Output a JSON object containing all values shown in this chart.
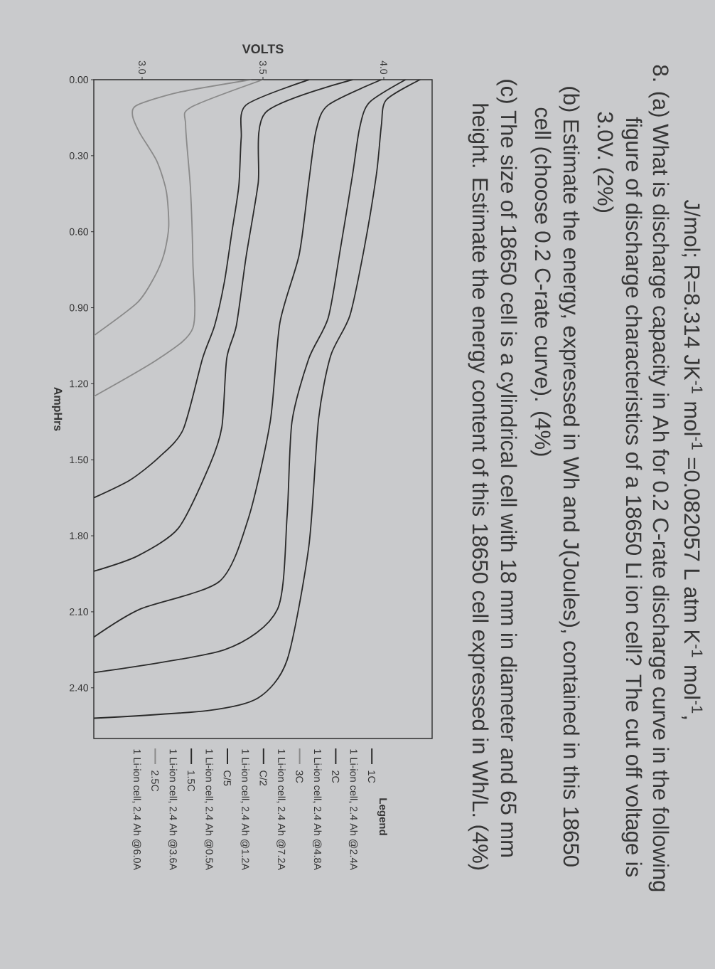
{
  "chart_data": {
    "type": "line",
    "xlabel": "VOLTS",
    "ylabel": "AmpHrs",
    "legend_title": "Legend",
    "legend": "bottom",
    "xlim": [
      2.8,
      4.2
    ],
    "ylim": [
      2.6,
      0
    ],
    "xticks": [
      {
        "value": 3,
        "label": "3.0"
      },
      3.5,
      {
        "value": 4,
        "label": "4.0"
      }
    ],
    "yticks": [
      {
        "value": 0,
        "label": "0.00"
      },
      {
        "value": 0.3,
        "label": "0.30"
      },
      {
        "value": 0.6,
        "label": "0.60"
      },
      {
        "value": 0.9,
        "label": "0.90"
      },
      {
        "value": 1.2,
        "label": "1.20"
      },
      {
        "value": 1.5,
        "label": "1.50"
      },
      {
        "value": 1.8,
        "label": "1.80"
      },
      {
        "value": 2.1,
        "label": "2.10"
      },
      {
        "value": 2.4,
        "label": "2.40"
      }
    ],
    "annotations": [
      "J/mol; R=8.314  JK$^{-1}$ mol$^{-1}$ =0.082057 L atm K$^{-1}$ mol$^{-1}$,",
      "8. (a) What is discharge capacity in Ah for 0.2 C-rate discharge curve in the following",
      "figure of discharge characteristics of a 18650 Li ion cell?  The cut off voltage is",
      "3.0V. (2%)",
      "(b) Estimate the energy, expressed in Wh and J(Joules), contained in this 18650",
      "cell (choose 0.2 C-rate curve). (4%)",
      "(c) The size of 18650 cell is a cylindrical cell with 18 mm in diameter and 65 mm",
      "height. Estimate the energy content of this 18650 cell expressed in Wh/L. (4%)",
      "1 Li-ion cell, 2.4 Ah @2.4A",
      "1 Li-ion cell, 2.4 Ah @4.8A",
      "1 Li-ion cell, 2.4 Ah @7.2A",
      "1 Li-ion cell, 2.4 Ah @1.2A",
      "1 Li-ion cell, 2.4 Ah @0.5A",
      "1 Li-ion cell, 2.4 Ah @3.6A",
      "1 Li-ion cell, 2.4 Ah @6.0A"
    ],
    "series": [
      {
        "name": "1C",
        "color": "#2a2a2a",
        "x": [
          3.99,
          3.77,
          3.72,
          3.69,
          3.65,
          3.57,
          3.53,
          3.44,
          3.32,
          2.99,
          2.8
        ],
        "values": [
          0,
          0.1,
          0.2,
          0.4,
          0.69,
          0.96,
          1.35,
          1.73,
          1.98,
          2.09,
          2.2
        ]
      },
      {
        "name": "2C",
        "color": "#2a2a2a",
        "x": [
          3.69,
          3.43,
          3.41,
          3.4,
          3.37,
          3.34,
          3.3,
          3.25,
          3.17,
          3.07,
          2.95,
          2.8
        ],
        "values": [
          0,
          0.1,
          0.23,
          0.42,
          0.61,
          0.8,
          0.97,
          1.1,
          1.38,
          1.49,
          1.58,
          1.65
        ]
      },
      {
        "name": "3C",
        "color": "#8a8a8a",
        "x": [
          3.45,
          3.15,
          2.98,
          2.96,
          2.99,
          3.06,
          3.1,
          3.11,
          3.09,
          3.05,
          2.98,
          2.8
        ],
        "values": [
          0,
          0.05,
          0.1,
          0.14,
          0.21,
          0.32,
          0.44,
          0.58,
          0.69,
          0.78,
          0.88,
          1.01
        ]
      },
      {
        "name": "C/2",
        "color": "#2a2a2a",
        "x": [
          4.09,
          3.94,
          3.9,
          3.87,
          3.82,
          3.77,
          3.69,
          3.62,
          3.6,
          3.56,
          3.34,
          2.8
        ],
        "values": [
          0,
          0.09,
          0.19,
          0.38,
          0.67,
          0.94,
          1.1,
          1.35,
          1.72,
          2.09,
          2.25,
          2.34
        ]
      },
      {
        "name": "C/5",
        "color": "#2a2a2a",
        "x": [
          4.15,
          4.01,
          3.99,
          3.97,
          3.92,
          3.86,
          3.78,
          3.73,
          3.69,
          3.6,
          3.48,
          3.27,
          2.8
        ],
        "values": [
          0,
          0.08,
          0.18,
          0.37,
          0.66,
          0.93,
          1.09,
          1.34,
          1.84,
          2.29,
          2.44,
          2.49,
          2.52
        ]
      },
      {
        "name": "1.5C",
        "color": "#2a2a2a",
        "x": [
          3.87,
          3.51,
          3.48,
          3.43,
          3.39,
          3.35,
          3.33,
          3.28,
          3.15,
          2.98,
          2.8
        ],
        "values": [
          0,
          0.13,
          0.41,
          0.7,
          0.97,
          1.1,
          1.37,
          1.52,
          1.77,
          1.88,
          1.94
        ]
      },
      {
        "name": "2.5C",
        "color": "#8a8a8a",
        "x": [
          3.5,
          3.2,
          3.18,
          3.2,
          3.21,
          3.21,
          3.07,
          2.8
        ],
        "values": [
          0,
          0.11,
          0.18,
          0.43,
          0.72,
          0.98,
          1.1,
          1.25
        ]
      }
    ]
  }
}
